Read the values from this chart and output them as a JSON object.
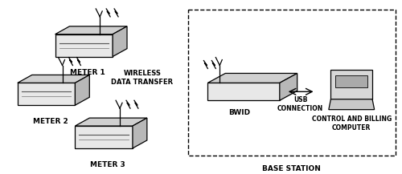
{
  "white": "#ffffff",
  "black": "#000000",
  "face_color": "#e8e8e8",
  "top_color": "#d0d0d0",
  "side_color": "#b8b8b8",
  "meter1_label": "METER 1",
  "meter2_label": "METER 2",
  "meter3_label": "METER 3",
  "bwid_label": "BWID",
  "usb_label": "USB\nCONNECTION",
  "billing_label": "CONTROL AND BILLING\nCOMPUTER",
  "base_label": "BASE STATION",
  "wireless_label": "WIRELESS\nDATA TRANSFER",
  "figsize": [
    5.0,
    2.17
  ],
  "dpi": 100
}
